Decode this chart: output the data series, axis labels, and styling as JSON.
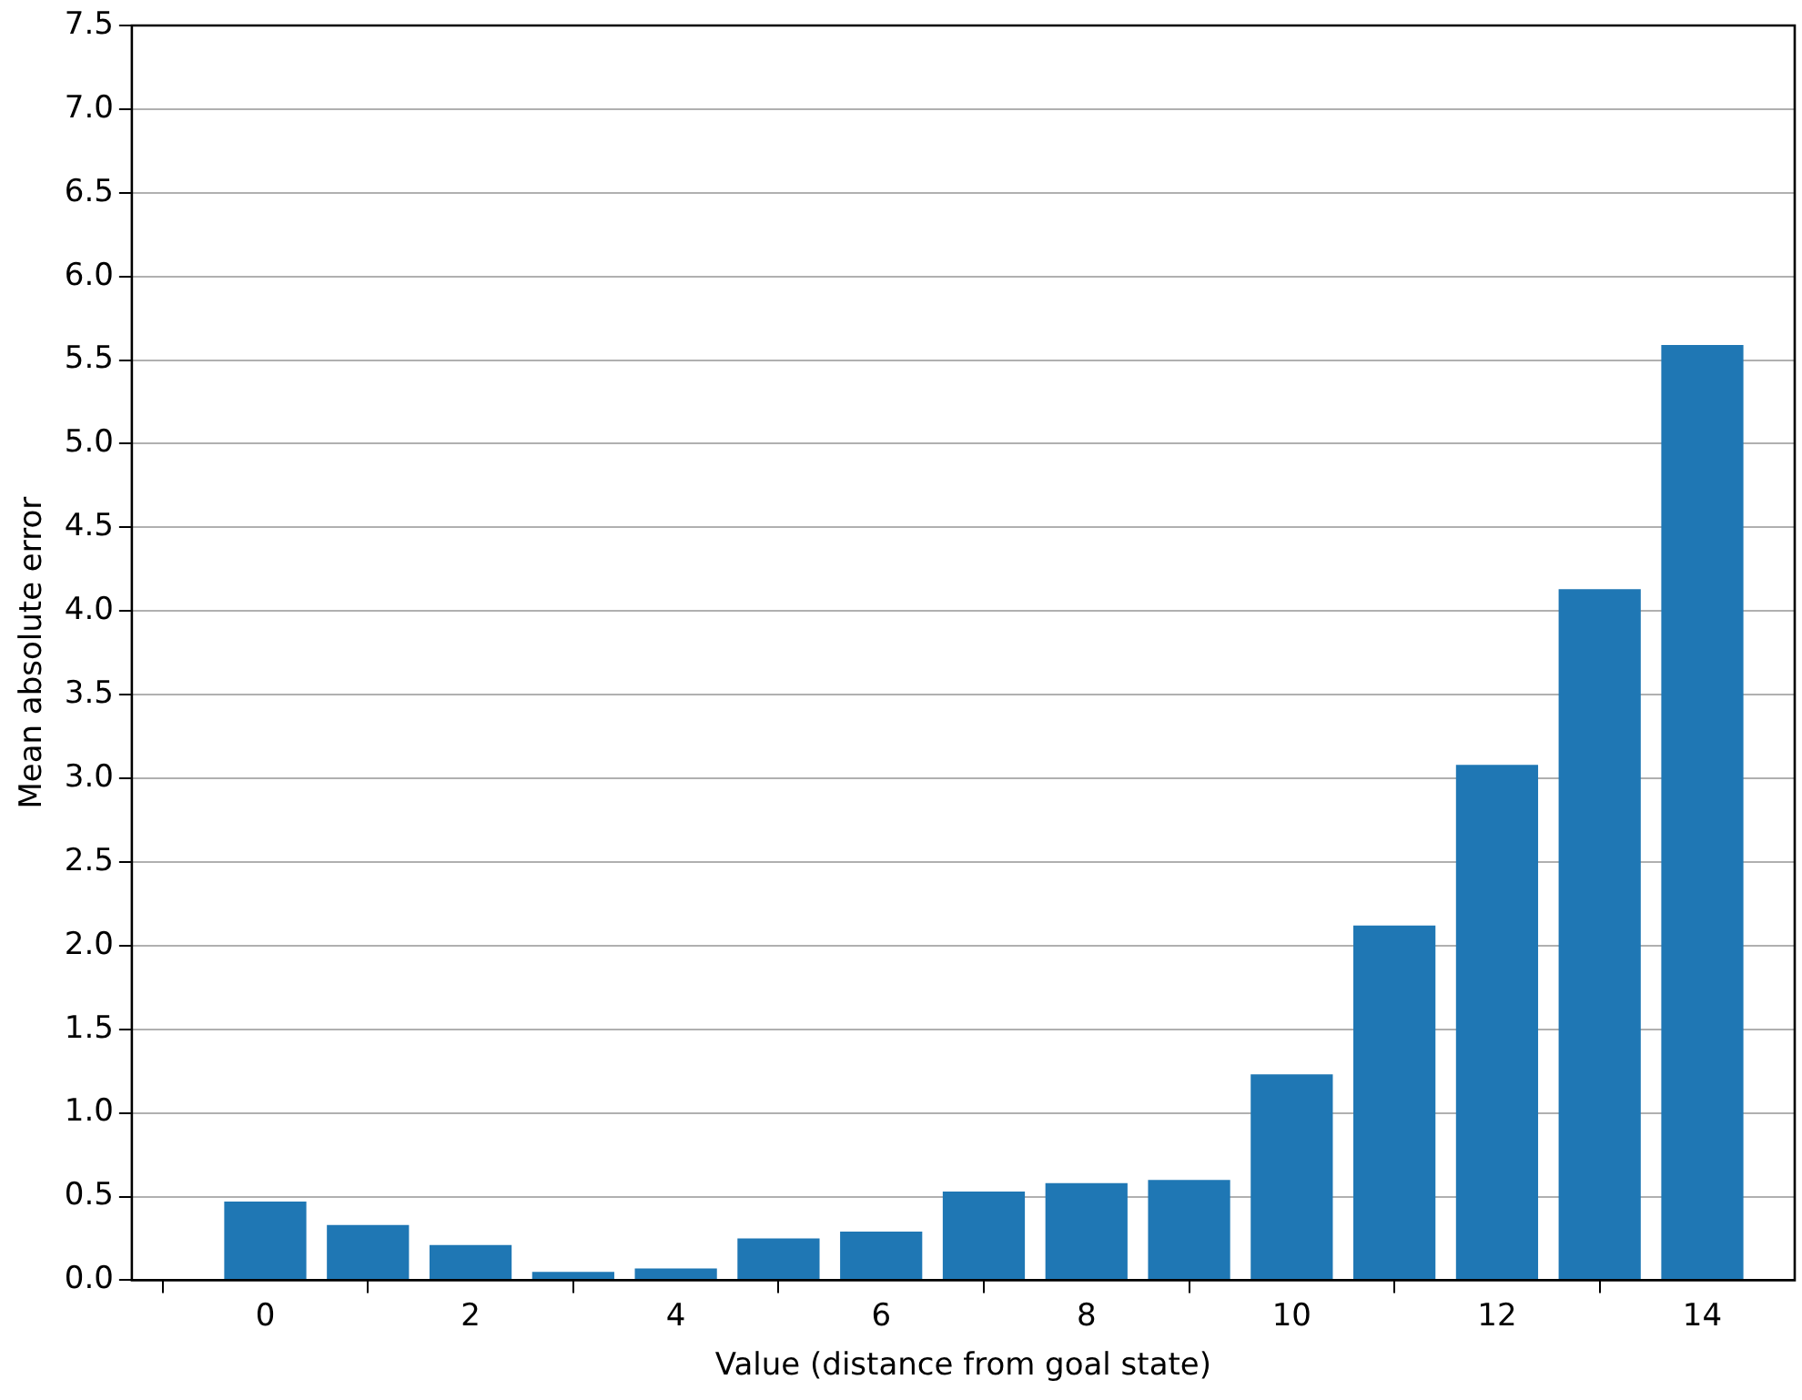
{
  "chart_data": {
    "type": "bar",
    "xlabel": "Value (distance from goal state)",
    "ylabel": "Mean absolute error",
    "x": [
      0,
      1,
      2,
      3,
      4,
      5,
      6,
      7,
      8,
      9,
      10,
      11,
      12,
      13,
      14
    ],
    "series": [
      {
        "color": "#1f77b4",
        "values": [
          0.47,
          0.33,
          0.21,
          0.05,
          0.07,
          0.25,
          0.29,
          0.53,
          0.58,
          0.6,
          1.23,
          2.12,
          3.08,
          4.13,
          5.59
        ]
      }
    ],
    "xlim": [
      -1.3,
      14.9
    ],
    "xticks": [
      0,
      2,
      4,
      6,
      8,
      10,
      12,
      14
    ],
    "ylim": [
      0,
      7.5
    ],
    "yticks": [
      {
        "value": 0,
        "label": "0.0"
      },
      0.5,
      {
        "value": 1,
        "label": "1.0"
      },
      1.5,
      {
        "value": 2,
        "label": "2.0"
      },
      2.5,
      {
        "value": 3,
        "label": "3.0"
      },
      3.5,
      {
        "value": 4,
        "label": "4.0"
      },
      4.5,
      {
        "value": 5,
        "label": "5.0"
      },
      5.5,
      {
        "value": 6,
        "label": "6.0"
      },
      6.5,
      {
        "value": 7,
        "label": "7.0"
      },
      7.5
    ],
    "grid": "y",
    "legend": false
  }
}
